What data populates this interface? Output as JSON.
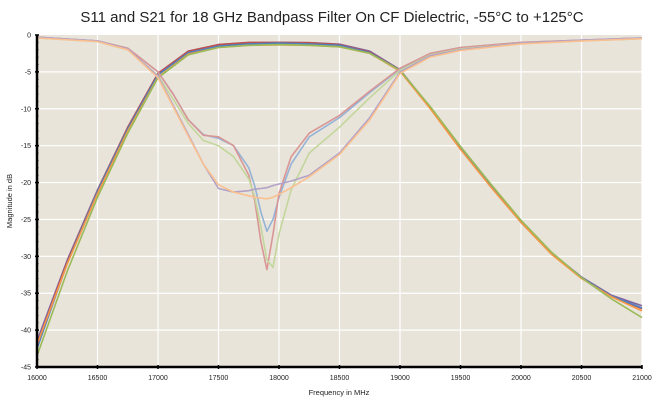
{
  "chart_data": {
    "type": "line",
    "title": "S11 and S21 for 18 GHz Bandpass Filter On CF Dielectric, -55°C to +125°C",
    "xlabel": "Frequency in MHz",
    "ylabel": "Magnitude in dB",
    "xlim": [
      16000,
      21000
    ],
    "ylim": [
      -45,
      0
    ],
    "xticks": [
      "16000",
      "16500",
      "17000",
      "17500",
      "18000",
      "18500",
      "19000",
      "19500",
      "20000",
      "20500",
      "21000"
    ],
    "yticks": [
      "0",
      "-5",
      "-10",
      "-15",
      "-20",
      "-25",
      "-30",
      "-35",
      "-40",
      "-45"
    ],
    "grid": true,
    "legend": "none",
    "background": "#e8e4da",
    "s11_x": [
      16000,
      16500,
      16750,
      17000,
      17125,
      17250,
      17375,
      17500,
      17625,
      17750,
      17800,
      17850,
      17900,
      17950,
      18000,
      18100,
      18250,
      18500,
      18750,
      19000,
      19250,
      19500,
      20000,
      20500,
      21000
    ],
    "s11_series": [
      {
        "color": "#95b3d7",
        "values": [
          -0.3,
          -0.8,
          -1.8,
          -5.0,
          -8,
          -11.5,
          -13.5,
          -14,
          -15,
          -18,
          -20.5,
          -24,
          -26.6,
          -25,
          -22,
          -17.5,
          -13.8,
          -11.2,
          -7.8,
          -4.6,
          -2.5,
          -1.7,
          -1.0,
          -0.7,
          -0.4
        ]
      },
      {
        "color": "#d99694",
        "values": [
          -0.3,
          -0.8,
          -1.8,
          -5.0,
          -8,
          -11.5,
          -13.6,
          -13.8,
          -15,
          -19,
          -22.5,
          -28,
          -31.8,
          -27,
          -21.5,
          -16.5,
          -13.3,
          -10.9,
          -7.6,
          -4.5,
          -2.5,
          -1.7,
          -1.0,
          -0.7,
          -0.4
        ]
      },
      {
        "color": "#c3d69b",
        "values": [
          -0.4,
          -0.9,
          -2,
          -5.5,
          -8.7,
          -12,
          -14.3,
          -15,
          -16.5,
          -19.5,
          -22,
          -26,
          -30.5,
          -31.5,
          -27,
          -21,
          -16,
          -12.5,
          -8.5,
          -4.8,
          -2.7,
          -1.9,
          -1.1,
          -0.8,
          -0.5
        ]
      },
      {
        "color": "#b3a2c7",
        "values": [
          -0.3,
          -0.8,
          -1.9,
          -5.6,
          -9.5,
          -13.5,
          -17.5,
          -20.8,
          -21.3,
          -21.1,
          -20.9,
          -20.8,
          -20.7,
          -20.4,
          -20.2,
          -19.8,
          -19,
          -16,
          -11.2,
          -5.0,
          -2.8,
          -2.0,
          -1.1,
          -0.7,
          -0.4
        ]
      },
      {
        "color": "#fac090",
        "values": [
          -0.4,
          -0.9,
          -2,
          -5.8,
          -9.7,
          -13.7,
          -17.5,
          -20.3,
          -21.3,
          -21.8,
          -22,
          -22.1,
          -22.2,
          -22,
          -21.6,
          -20.7,
          -19.2,
          -16.2,
          -11.5,
          -5.2,
          -3,
          -2.1,
          -1.2,
          -0.8,
          -0.5
        ]
      }
    ],
    "s21_x": [
      16000,
      16250,
      16500,
      16750,
      17000,
      17250,
      17500,
      17750,
      18000,
      18250,
      18500,
      18750,
      19000,
      19250,
      19500,
      19750,
      20000,
      20250,
      20500,
      20750,
      21000
    ],
    "s21_series": [
      {
        "color": "#8064a2",
        "values": [
          -41.5,
          -30.5,
          -21,
          -12.5,
          -5.2,
          -2.2,
          -1.3,
          -1.05,
          -1.0,
          -1.05,
          -1.25,
          -2.2,
          -4.7,
          -9.8,
          -15.3,
          -20.4,
          -25.3,
          -29.5,
          -32.8,
          -35.3,
          -36.7
        ]
      },
      {
        "color": "#c0504d",
        "values": [
          -42,
          -30.7,
          -21.1,
          -12.5,
          -5.2,
          -2.2,
          -1.3,
          -1.0,
          -1.0,
          -1.05,
          -1.3,
          -2.3,
          -4.8,
          -9.9,
          -15.4,
          -20.5,
          -25.3,
          -29.6,
          -32.9,
          -35.4,
          -37.1
        ]
      },
      {
        "color": "#4f81bd",
        "values": [
          -42.5,
          -30.9,
          -21.2,
          -12.7,
          -5.4,
          -2.4,
          -1.5,
          -1.2,
          -1.1,
          -1.2,
          -1.4,
          -2.4,
          -4.8,
          -9.9,
          -15.4,
          -20.5,
          -25.4,
          -29.6,
          -32.9,
          -35.4,
          -37.0
        ]
      },
      {
        "color": "#f79646",
        "values": [
          -42,
          -31,
          -21.5,
          -13,
          -5.7,
          -2.6,
          -1.7,
          -1.4,
          -1.35,
          -1.4,
          -1.6,
          -2.5,
          -4.9,
          -10,
          -15.5,
          -20.6,
          -25.4,
          -29.7,
          -33.0,
          -35.5,
          -37.4
        ]
      },
      {
        "color": "#9bbb59",
        "values": [
          -43.5,
          -32,
          -22,
          -13.3,
          -5.8,
          -2.7,
          -1.7,
          -1.4,
          -1.3,
          -1.4,
          -1.6,
          -2.5,
          -4.8,
          -9.7,
          -15.1,
          -20.2,
          -25.1,
          -29.4,
          -32.9,
          -35.8,
          -38.3
        ]
      }
    ]
  }
}
